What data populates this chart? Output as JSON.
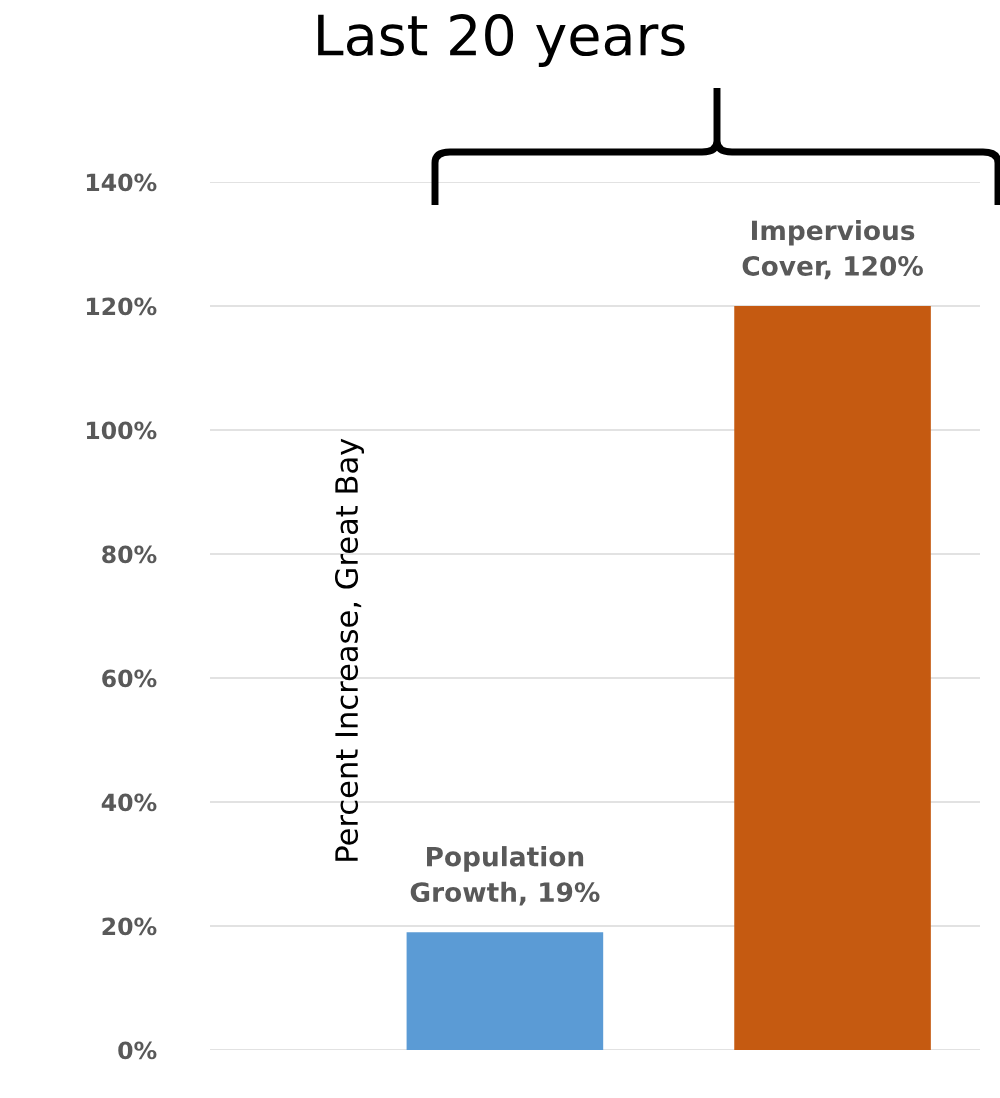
{
  "chart_data": {
    "type": "bar",
    "title": "Last 20 years",
    "ylabel": "Percent Increase, Great Bay",
    "categories": [
      null,
      null
    ],
    "values": [
      19,
      120
    ],
    "colors": [
      "#5b9bd5",
      "#c55a11"
    ],
    "value_labels": [
      "Population\nGrowth, 19%",
      "Impervious\nCover, 120%"
    ],
    "ylim": [
      0,
      140
    ],
    "yticks": [
      {
        "value": 0,
        "label": "0%"
      },
      {
        "value": 20,
        "label": "20%"
      },
      {
        "value": 40,
        "label": "40%"
      },
      {
        "value": 60,
        "label": "60%"
      },
      {
        "value": 80,
        "label": "80%"
      },
      {
        "value": 100,
        "label": "100%"
      },
      {
        "value": 120,
        "label": "120%"
      },
      {
        "value": 140,
        "label": "140%"
      }
    ],
    "grid": "y",
    "legend": false
  }
}
